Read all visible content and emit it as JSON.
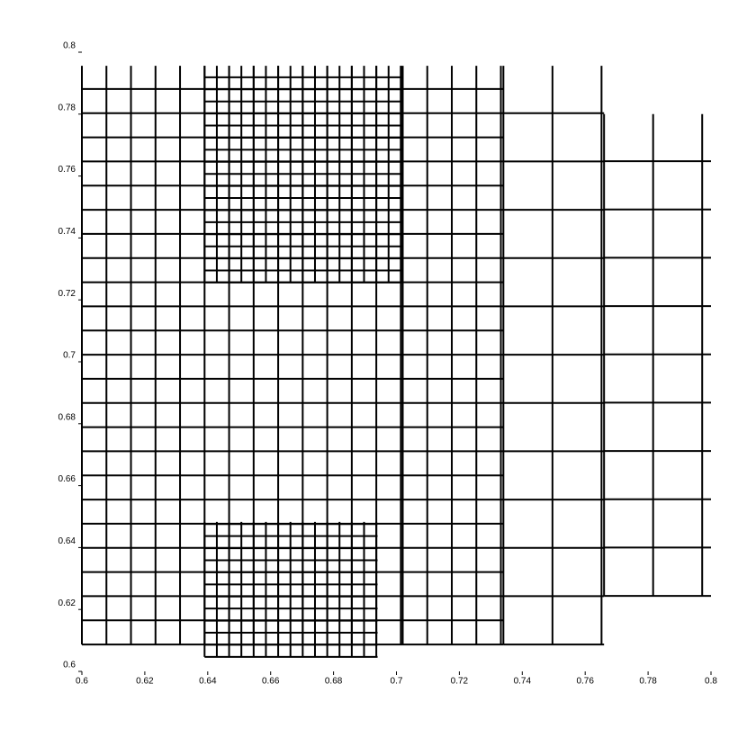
{
  "chart_data": {
    "type": "mesh",
    "xlim": [
      0.6,
      0.8
    ],
    "ylim": [
      0.6,
      0.8
    ],
    "xticks": [
      0.6,
      0.62,
      0.64,
      0.66,
      0.68,
      0.7,
      0.72,
      0.74,
      0.76,
      0.78,
      0.8
    ],
    "yticks": [
      0.6,
      0.62,
      0.64,
      0.66,
      0.68,
      0.7,
      0.72,
      0.74,
      0.76,
      0.78,
      0.8
    ],
    "color": "#000000",
    "regions": [
      {
        "x": [
          0.6,
          0.702
        ],
        "y": [
          0.6087,
          0.7956
        ],
        "step": 0.0078
      },
      {
        "x": [
          0.639,
          0.702
        ],
        "y": [
          0.7256,
          0.7956
        ],
        "step": 0.0039
      },
      {
        "x": [
          0.639,
          0.694
        ],
        "y": [
          0.6047,
          0.6483
        ],
        "step": 0.0039
      },
      {
        "x": [
          0.702,
          0.734
        ],
        "y": [
          0.6087,
          0.7956
        ],
        "step": 0.0078
      },
      {
        "x": [
          0.734,
          0.766
        ],
        "y": [
          0.6087,
          0.7956
        ],
        "step": 0.0156
      },
      {
        "x": [
          0.766,
          0.8
        ],
        "y": [
          0.6244,
          0.78
        ],
        "step": 0.0156
      }
    ]
  }
}
